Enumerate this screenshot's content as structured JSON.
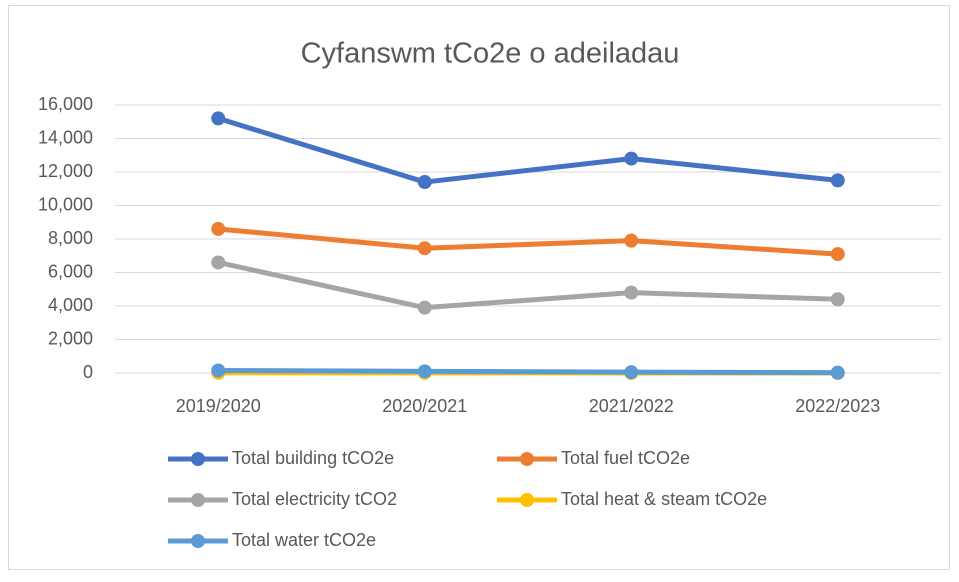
{
  "chart_data": {
    "type": "line",
    "title": "Cyfanswm tCo2e o adeiladau",
    "categories": [
      "2019/2020",
      "2020/2021",
      "2021/2022",
      "2022/2023"
    ],
    "series": [
      {
        "name": "Total building tCO2e",
        "color": "#4472c4",
        "values": [
          15200,
          11400,
          12800,
          11500
        ]
      },
      {
        "name": "Total fuel tCO2e",
        "color": "#ed7d31",
        "values": [
          8600,
          7450,
          7900,
          7100
        ]
      },
      {
        "name": "Total electricity tCO2",
        "color": "#a5a5a5",
        "values": [
          6600,
          3900,
          4800,
          4400
        ]
      },
      {
        "name": "Total heat & steam tCO2e",
        "color": "#ffc000",
        "values": [
          10,
          10,
          0,
          0
        ]
      },
      {
        "name": "Total water tCO2e",
        "color": "#5b9bd5",
        "values": [
          150,
          100,
          50,
          20
        ]
      }
    ],
    "ylim": [
      0,
      16000
    ],
    "yticks": [
      0,
      {
        "value": 2000,
        "label": "2,000"
      },
      {
        "value": 4000,
        "label": "4,000"
      },
      {
        "value": 6000,
        "label": "6,000"
      },
      {
        "value": 8000,
        "label": "8,000"
      },
      {
        "value": 10000,
        "label": "10,000"
      },
      {
        "value": 12000,
        "label": "12,000"
      },
      {
        "value": 14000,
        "label": "14,000"
      },
      {
        "value": 16000,
        "label": "16,000"
      }
    ],
    "grid": true,
    "legend": "bottom"
  }
}
